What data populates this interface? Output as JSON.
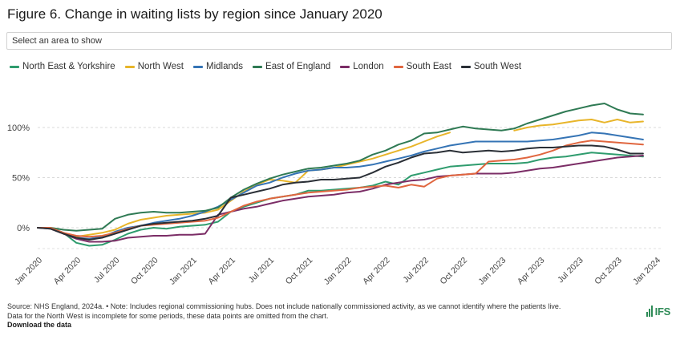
{
  "title": "Figure 6. Change in waiting lists by region since January 2020",
  "select_placeholder": "Select an area to show",
  "footer": {
    "line1": "Source: NHS England, 2024a. • Note: Includes regional commissioning hubs. Does not include nationally commissioned activity, as we cannot identify where the patients live.",
    "line2": "Data for the North West is incomplete for some periods, these data points are omitted from the chart.",
    "download": "Download the data"
  },
  "logo_text": "IFS",
  "colors": {
    "North East & Yorkshire": "#2f9c6e",
    "North West": "#e8b52a",
    "Midlands": "#3574b5",
    "East of England": "#2f7a54",
    "London": "#7b2d66",
    "South East": "#e0663f",
    "South West": "#2a2f36",
    "logo": "#2e8b57"
  },
  "chart_data": {
    "type": "line",
    "x": [
      "2020-01",
      "2020-02",
      "2020-03",
      "2020-04",
      "2020-05",
      "2020-06",
      "2020-07",
      "2020-08",
      "2020-09",
      "2020-10",
      "2020-11",
      "2020-12",
      "2021-01",
      "2021-02",
      "2021-03",
      "2021-04",
      "2021-05",
      "2021-06",
      "2021-07",
      "2021-08",
      "2021-09",
      "2021-10",
      "2021-11",
      "2021-12",
      "2022-01",
      "2022-02",
      "2022-03",
      "2022-04",
      "2022-05",
      "2022-06",
      "2022-07",
      "2022-08",
      "2022-09",
      "2022-10",
      "2022-11",
      "2022-12",
      "2023-01",
      "2023-02",
      "2023-03",
      "2023-04",
      "2023-05",
      "2023-06",
      "2023-07",
      "2023-08",
      "2023-09",
      "2023-10",
      "2023-11",
      "2023-12"
    ],
    "x_ticks": [
      "Jan 2020",
      "Apr 2020",
      "Jul 2020",
      "Oct 2020",
      "Jan 2021",
      "Apr 2021",
      "Jul 2021",
      "Oct 2021",
      "Jan 2022",
      "Apr 2022",
      "Jul 2022",
      "Oct 2022",
      "Jan 2023",
      "Apr 2023",
      "Jul 2023",
      "Oct 2023",
      "Jan 2024"
    ],
    "y_ticks": [
      "0%",
      "50%",
      "100%"
    ],
    "ylim": [
      -0.22,
      1.3
    ],
    "grid": "horizontal dashed",
    "legend": "top",
    "series": [
      {
        "name": "North East & Yorkshire",
        "values": [
          0,
          0,
          -0.05,
          -0.15,
          -0.18,
          -0.17,
          -0.12,
          -0.06,
          -0.02,
          0,
          -0.01,
          0.01,
          0.02,
          0.03,
          0.06,
          0.16,
          0.21,
          0.25,
          0.29,
          0.31,
          0.33,
          0.37,
          0.37,
          0.38,
          0.39,
          0.4,
          0.42,
          0.46,
          0.43,
          0.52,
          0.55,
          0.58,
          0.61,
          0.62,
          0.63,
          0.64,
          0.64,
          0.64,
          0.65,
          0.68,
          0.7,
          0.71,
          0.73,
          0.75,
          0.74,
          0.73,
          0.72,
          0.71
        ]
      },
      {
        "name": "North West",
        "values": [
          0,
          0,
          -0.05,
          -0.09,
          -0.07,
          -0.05,
          -0.02,
          0.04,
          0.08,
          0.1,
          0.12,
          0.13,
          0.14,
          0.15,
          0.18,
          0.27,
          0.36,
          0.43,
          0.48,
          0.47,
          0.45,
          0.57,
          0.58,
          0.6,
          0.63,
          0.66,
          0.69,
          0.73,
          0.77,
          0.81,
          0.86,
          0.91,
          0.95,
          null,
          null,
          null,
          null,
          0.97,
          1.0,
          1.02,
          1.03,
          1.05,
          1.07,
          1.08,
          1.05,
          1.08,
          1.05,
          1.06
        ]
      },
      {
        "name": "Midlands",
        "values": [
          0,
          0,
          -0.05,
          -0.1,
          -0.11,
          -0.09,
          -0.04,
          0,
          0.02,
          0.05,
          0.07,
          0.09,
          0.12,
          0.16,
          0.21,
          0.28,
          0.35,
          0.42,
          0.45,
          0.5,
          0.54,
          0.57,
          0.58,
          0.6,
          0.6,
          0.61,
          0.63,
          0.66,
          0.69,
          0.72,
          0.76,
          0.79,
          0.82,
          0.84,
          0.86,
          0.86,
          0.86,
          0.86,
          0.86,
          0.87,
          0.88,
          0.9,
          0.92,
          0.95,
          0.94,
          0.92,
          0.9,
          0.88
        ]
      },
      {
        "name": "East of England",
        "values": [
          0,
          0,
          -0.02,
          -0.03,
          -0.02,
          -0.01,
          0.09,
          0.13,
          0.15,
          0.16,
          0.15,
          0.15,
          0.16,
          0.17,
          0.2,
          0.3,
          0.38,
          0.44,
          0.49,
          0.53,
          0.56,
          0.59,
          0.6,
          0.62,
          0.64,
          0.67,
          0.73,
          0.77,
          0.83,
          0.87,
          0.94,
          0.95,
          0.98,
          1.01,
          0.99,
          0.98,
          0.97,
          0.99,
          1.04,
          1.08,
          1.12,
          1.16,
          1.19,
          1.22,
          1.24,
          1.18,
          1.14,
          1.13
        ]
      },
      {
        "name": "London",
        "values": [
          0,
          -0.01,
          -0.06,
          -0.11,
          -0.14,
          -0.14,
          -0.13,
          -0.1,
          -0.09,
          -0.08,
          -0.08,
          -0.07,
          -0.07,
          -0.06,
          0.13,
          0.16,
          0.19,
          0.21,
          0.24,
          0.27,
          0.29,
          0.31,
          0.32,
          0.33,
          0.35,
          0.36,
          0.39,
          0.43,
          0.45,
          0.47,
          0.48,
          0.51,
          0.52,
          0.53,
          0.54,
          0.54,
          0.54,
          0.55,
          0.57,
          0.59,
          0.6,
          0.62,
          0.64,
          0.66,
          0.68,
          0.7,
          0.71,
          0.72
        ]
      },
      {
        "name": "South East",
        "values": [
          0,
          0,
          -0.05,
          -0.08,
          -0.09,
          -0.08,
          -0.05,
          -0.01,
          0.02,
          0.03,
          0.04,
          0.05,
          0.06,
          0.07,
          0.1,
          0.16,
          0.22,
          0.26,
          0.29,
          0.31,
          0.33,
          0.35,
          0.36,
          0.37,
          0.38,
          0.4,
          0.41,
          0.42,
          0.4,
          0.43,
          0.41,
          0.49,
          0.52,
          0.53,
          0.54,
          0.66,
          0.67,
          0.68,
          0.7,
          0.73,
          0.77,
          0.82,
          0.85,
          0.87,
          0.86,
          0.85,
          0.84,
          0.83
        ]
      },
      {
        "name": "South West",
        "values": [
          0,
          -0.01,
          -0.06,
          -0.1,
          -0.12,
          -0.1,
          -0.06,
          -0.02,
          0.02,
          0.04,
          0.05,
          0.06,
          0.07,
          0.09,
          0.12,
          0.3,
          0.33,
          0.36,
          0.39,
          0.43,
          0.45,
          0.46,
          0.48,
          0.48,
          0.49,
          0.5,
          0.55,
          0.61,
          0.65,
          0.7,
          0.74,
          0.75,
          0.77,
          0.75,
          0.76,
          0.77,
          0.76,
          0.77,
          0.79,
          0.8,
          0.8,
          0.81,
          0.82,
          0.82,
          0.81,
          0.78,
          0.74,
          0.74
        ]
      }
    ]
  }
}
